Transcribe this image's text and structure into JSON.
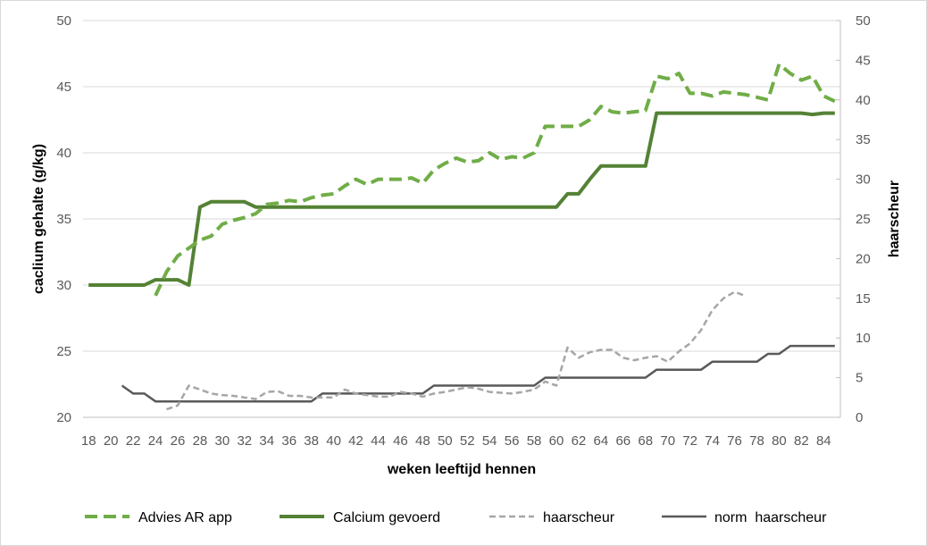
{
  "chart_data": {
    "type": "line",
    "xlabel": "weken leeftijd hennen",
    "ylabel_left": "caclium gehalte (g/kg)",
    "ylabel_right": "haarscheur",
    "x_ticks": [
      18,
      20,
      22,
      24,
      26,
      28,
      30,
      32,
      34,
      36,
      38,
      40,
      42,
      44,
      46,
      48,
      50,
      52,
      54,
      56,
      58,
      60,
      62,
      64,
      66,
      68,
      70,
      72,
      74,
      76,
      78,
      80,
      82,
      84
    ],
    "ylim_left": [
      20,
      50
    ],
    "yticks_left": [
      20,
      25,
      30,
      35,
      40,
      45,
      50
    ],
    "ylim_right": [
      0,
      50
    ],
    "yticks_right": [
      0,
      5,
      10,
      15,
      20,
      25,
      30,
      35,
      40,
      45,
      50
    ],
    "grid": "horizontal",
    "legend_position": "bottom",
    "series": [
      {
        "name": "Advies AR app",
        "axis": "left",
        "color": "#70ad47",
        "style": "dashed-thick",
        "x": [
          24,
          25,
          26,
          27,
          28,
          29,
          30,
          31,
          32,
          33,
          34,
          35,
          36,
          37,
          38,
          39,
          40,
          41,
          42,
          43,
          44,
          45,
          46,
          47,
          48,
          49,
          50,
          51,
          52,
          53,
          54,
          55,
          56,
          57,
          58,
          59,
          60,
          61,
          62,
          63,
          64,
          65,
          66,
          67,
          68,
          69,
          70,
          71,
          72,
          73,
          74,
          75,
          76,
          77,
          78,
          79,
          80,
          81,
          82,
          83,
          84,
          85
        ],
        "values": [
          29.2,
          31.0,
          32.2,
          32.8,
          33.4,
          33.7,
          34.6,
          34.9,
          35.1,
          35.4,
          36.1,
          36.2,
          36.4,
          36.3,
          36.6,
          36.8,
          36.9,
          37.5,
          38.0,
          37.6,
          38.0,
          38.0,
          38.0,
          38.1,
          37.7,
          38.7,
          39.2,
          39.6,
          39.3,
          39.4,
          40.0,
          39.5,
          39.7,
          39.6,
          40.0,
          42.0,
          42.0,
          42.0,
          42.0,
          42.5,
          43.5,
          43.1,
          43.0,
          43.1,
          43.2,
          45.8,
          45.6,
          46.0,
          44.5,
          44.5,
          44.3,
          44.6,
          44.5,
          44.4,
          44.2,
          44.0,
          46.7,
          46.0,
          45.5,
          45.8,
          44.3,
          43.9
        ]
      },
      {
        "name": "Calcium gevoerd",
        "axis": "left",
        "color": "#548235",
        "style": "solid-thick",
        "x": [
          18,
          19,
          20,
          21,
          22,
          23,
          24,
          25,
          26,
          27,
          28,
          29,
          30,
          31,
          32,
          33,
          34,
          35,
          36,
          37,
          38,
          39,
          40,
          41,
          42,
          43,
          44,
          45,
          46,
          47,
          48,
          49,
          50,
          51,
          52,
          53,
          54,
          55,
          56,
          57,
          58,
          59,
          60,
          61,
          62,
          63,
          64,
          65,
          66,
          67,
          68,
          69,
          70,
          71,
          72,
          73,
          74,
          75,
          76,
          77,
          78,
          79,
          80,
          81,
          82,
          83,
          84,
          85
        ],
        "values": [
          30,
          30,
          30,
          30,
          30,
          30,
          30.4,
          30.4,
          30.4,
          30,
          35.9,
          36.3,
          36.3,
          36.3,
          36.3,
          35.9,
          35.9,
          35.9,
          35.9,
          35.9,
          35.9,
          35.9,
          35.9,
          35.9,
          35.9,
          35.9,
          35.9,
          35.9,
          35.9,
          35.9,
          35.9,
          35.9,
          35.9,
          35.9,
          35.9,
          35.9,
          35.9,
          35.9,
          35.9,
          35.9,
          35.9,
          35.9,
          35.9,
          36.9,
          36.9,
          38.0,
          39.0,
          39.0,
          39.0,
          39.0,
          39.0,
          43.0,
          43.0,
          43.0,
          43.0,
          43.0,
          43.0,
          43.0,
          43.0,
          43.0,
          43.0,
          43.0,
          43.0,
          43.0,
          43.0,
          42.9,
          43.0,
          43.0
        ]
      },
      {
        "name": "haarscheur",
        "axis": "right",
        "color": "#a6a6a6",
        "style": "dashed-thin",
        "x": [
          25,
          26,
          27,
          28,
          29,
          30,
          31,
          32,
          33,
          34,
          35,
          36,
          37,
          38,
          39,
          40,
          41,
          42,
          43,
          44,
          45,
          46,
          47,
          48,
          49,
          50,
          51,
          52,
          53,
          54,
          55,
          56,
          57,
          58,
          59,
          60,
          61,
          62,
          63,
          64,
          65,
          66,
          67,
          68,
          69,
          70,
          71,
          72,
          73,
          74,
          75,
          76,
          77
        ],
        "values": [
          1.0,
          1.5,
          4.0,
          3.5,
          3.0,
          2.8,
          2.7,
          2.5,
          2.3,
          3.2,
          3.3,
          2.7,
          2.7,
          2.5,
          2.5,
          2.5,
          3.5,
          3.0,
          2.8,
          2.6,
          2.6,
          3.2,
          3.0,
          2.6,
          3.0,
          3.2,
          3.5,
          3.8,
          3.6,
          3.2,
          3.1,
          3.0,
          3.2,
          3.5,
          4.5,
          4.0,
          8.8,
          7.5,
          8.2,
          8.5,
          8.5,
          7.5,
          7.2,
          7.5,
          7.7,
          7.0,
          8.3,
          9.3,
          11.0,
          13.5,
          15.0,
          15.8,
          15.3
        ]
      },
      {
        "name": "norm  haarscheur",
        "axis": "right",
        "color": "#595959",
        "style": "solid-thin",
        "x": [
          21,
          22,
          23,
          24,
          25,
          26,
          27,
          28,
          29,
          30,
          31,
          32,
          33,
          34,
          35,
          36,
          37,
          38,
          39,
          40,
          41,
          42,
          43,
          44,
          45,
          46,
          47,
          48,
          49,
          50,
          51,
          52,
          53,
          54,
          55,
          56,
          57,
          58,
          59,
          60,
          61,
          62,
          63,
          64,
          65,
          66,
          67,
          68,
          69,
          70,
          71,
          72,
          73,
          74,
          75,
          76,
          77,
          78,
          79,
          80,
          81,
          82,
          83,
          84,
          85
        ],
        "values": [
          4,
          3,
          3,
          2,
          2,
          2,
          2,
          2,
          2,
          2,
          2,
          2,
          2,
          2,
          2,
          2,
          2,
          2,
          3,
          3,
          3,
          3,
          3,
          3,
          3,
          3,
          3,
          3,
          4,
          4,
          4,
          4,
          4,
          4,
          4,
          4,
          4,
          4,
          5,
          5,
          5,
          5,
          5,
          5,
          5,
          5,
          5,
          5,
          6,
          6,
          6,
          6,
          6,
          7,
          7,
          7,
          7,
          7,
          8,
          8,
          9,
          9,
          9,
          9,
          9
        ]
      }
    ]
  }
}
